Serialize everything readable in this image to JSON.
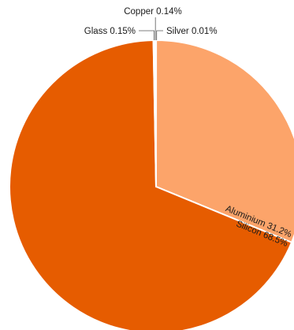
{
  "chart_data": {
    "type": "pie",
    "title": "",
    "slices": [
      {
        "name": "Silver",
        "value": 0.01,
        "label": "Silver 0.01%",
        "color": "#d9d9d9"
      },
      {
        "name": "Aluminium",
        "value": 31.2,
        "label": "Aluminium 31.2%",
        "color": "#fca46a"
      },
      {
        "name": "Silicon",
        "value": 68.5,
        "label": "Silicon 68.5%",
        "color": "#e65c00"
      },
      {
        "name": "Glass",
        "value": 0.15,
        "label": "Glass 0.15%",
        "color": "#d9d9d9"
      },
      {
        "name": "Copper",
        "value": 0.14,
        "label": "Copper 0.14%",
        "color": "#c7c7c7"
      }
    ],
    "start_angle": "12 o'clock",
    "direction": "clockwise",
    "legend": "none"
  }
}
